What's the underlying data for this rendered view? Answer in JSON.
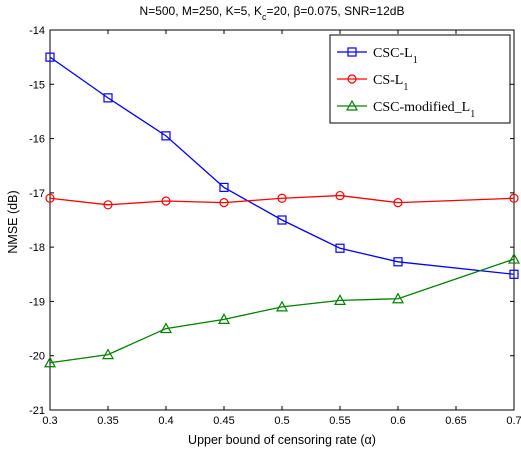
{
  "chart_data": {
    "type": "line",
    "title": "N=500, M=250, K=5, K",
    "title_sub": "c",
    "title_tail": "=20, β=0.075, SNR=12dB",
    "xlabel": "Upper bound of censoring rate (α)",
    "ylabel": "NMSE (dB)",
    "xlim": [
      0.3,
      0.7
    ],
    "ylim": [
      -21,
      -14
    ],
    "xticks": [
      0.3,
      0.35,
      0.4,
      0.45,
      0.5,
      0.55,
      0.6,
      0.65,
      0.7
    ],
    "xtick_labels": [
      "0.3",
      "0.35",
      "0.4",
      "0.45",
      "0.5",
      "0.55",
      "0.6",
      "0.65",
      "0.7"
    ],
    "yticks": [
      -21,
      -20,
      -19,
      -18,
      -17,
      -16,
      -15,
      -14
    ],
    "ytick_labels": [
      "-21",
      "-20",
      "-19",
      "-18",
      "-17",
      "-16",
      "-15",
      "-14"
    ],
    "grid": false,
    "legend_position": "top-right",
    "x": [
      0.3,
      0.35,
      0.4,
      0.45,
      0.5,
      0.55,
      0.6,
      0.7
    ],
    "series": [
      {
        "name": "CSC-L",
        "name_sub": "1",
        "color": "#0000ff",
        "marker": "square",
        "values": [
          -14.5,
          -15.25,
          -15.95,
          -16.9,
          -17.5,
          -18.02,
          -18.27,
          -18.5
        ]
      },
      {
        "name": "CS-L",
        "name_sub": "1",
        "color": "#ff0000",
        "marker": "circle",
        "values": [
          -17.1,
          -17.22,
          -17.15,
          -17.18,
          -17.1,
          -17.05,
          -17.18,
          -17.1
        ]
      },
      {
        "name": "CSC-modified_L",
        "name_sub": "1",
        "color": "#008000",
        "marker": "triangle",
        "values": [
          -20.13,
          -19.98,
          -19.5,
          -19.33,
          -19.1,
          -18.98,
          -18.95,
          -18.22
        ]
      }
    ]
  }
}
